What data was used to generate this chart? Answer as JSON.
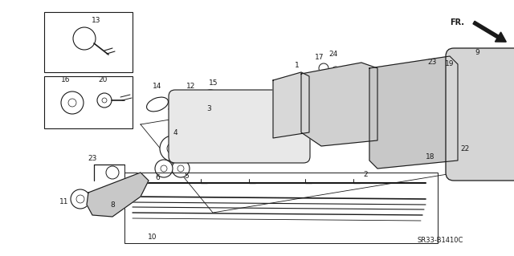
{
  "bg_color": "#ffffff",
  "line_color": "#1a1a1a",
  "fig_width": 6.4,
  "fig_height": 3.19,
  "dpi": 100,
  "watermark": "SR33-B1410C",
  "fr_label": "FR."
}
